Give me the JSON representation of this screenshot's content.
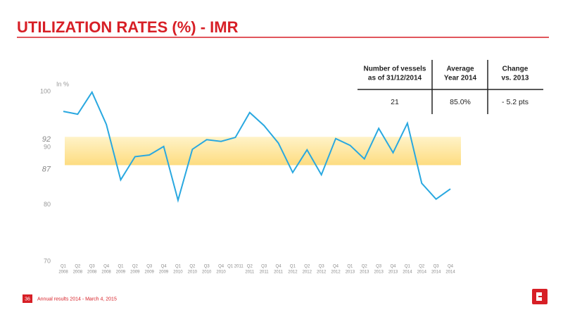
{
  "header": {
    "title": "UTILIZATION RATES (%) - IMR"
  },
  "chart_data": {
    "type": "line",
    "y_label": "In %",
    "categories": [
      [
        "Q1",
        "2008"
      ],
      [
        "Q2",
        "2008"
      ],
      [
        "Q3",
        "2008"
      ],
      [
        "Q4",
        "2008"
      ],
      [
        "Q1",
        "2009"
      ],
      [
        "Q2",
        "2009"
      ],
      [
        "Q3",
        "2009"
      ],
      [
        "Q4",
        "2009"
      ],
      [
        "Q1",
        "2010"
      ],
      [
        "Q2",
        "2010"
      ],
      [
        "Q3",
        "2010"
      ],
      [
        "Q4",
        "2010"
      ],
      [
        "Q1 2011",
        null
      ],
      [
        "Q2",
        "2011"
      ],
      [
        "Q3",
        "2011"
      ],
      [
        "Q4",
        "2011"
      ],
      [
        "Q1",
        "2012"
      ],
      [
        "Q2",
        "2012"
      ],
      [
        "Q3",
        "2012"
      ],
      [
        "Q4",
        "2012"
      ],
      [
        "Q1",
        "2013"
      ],
      [
        "Q2",
        "2013"
      ],
      [
        "Q3",
        "2013"
      ],
      [
        "Q4",
        "2013"
      ],
      [
        "Q1",
        "2014"
      ],
      [
        "Q2",
        "2014"
      ],
      [
        "Q3",
        "2014"
      ],
      [
        "Q4",
        "2014"
      ]
    ],
    "values": [
      96.5,
      96.0,
      99.9,
      94.2,
      84.4,
      88.5,
      88.8,
      90.3,
      80.8,
      89.8,
      91.5,
      91.2,
      91.9,
      96.3,
      94.0,
      90.9,
      85.7,
      89.7,
      85.3,
      91.7,
      90.5,
      88.1,
      93.5,
      89.2,
      94.4,
      83.8,
      81.0,
      82.8
    ],
    "color": "#29a8e0",
    "band": {
      "low": 87,
      "high": 92,
      "color": "#fde9a8"
    },
    "ylim": [
      70,
      100
    ],
    "yticks": [
      70,
      80,
      90,
      100
    ]
  },
  "table": {
    "headers": [
      [
        "Number of vessels",
        "as of 31/12/2014"
      ],
      [
        "Average",
        "Year 2014"
      ],
      [
        "Change",
        "vs. 2013"
      ]
    ],
    "row": [
      "21",
      "85.0%",
      "- 5.2 pts"
    ]
  },
  "footer": {
    "page": "36",
    "text": "Annual results 2014 - March 4, 2015"
  }
}
